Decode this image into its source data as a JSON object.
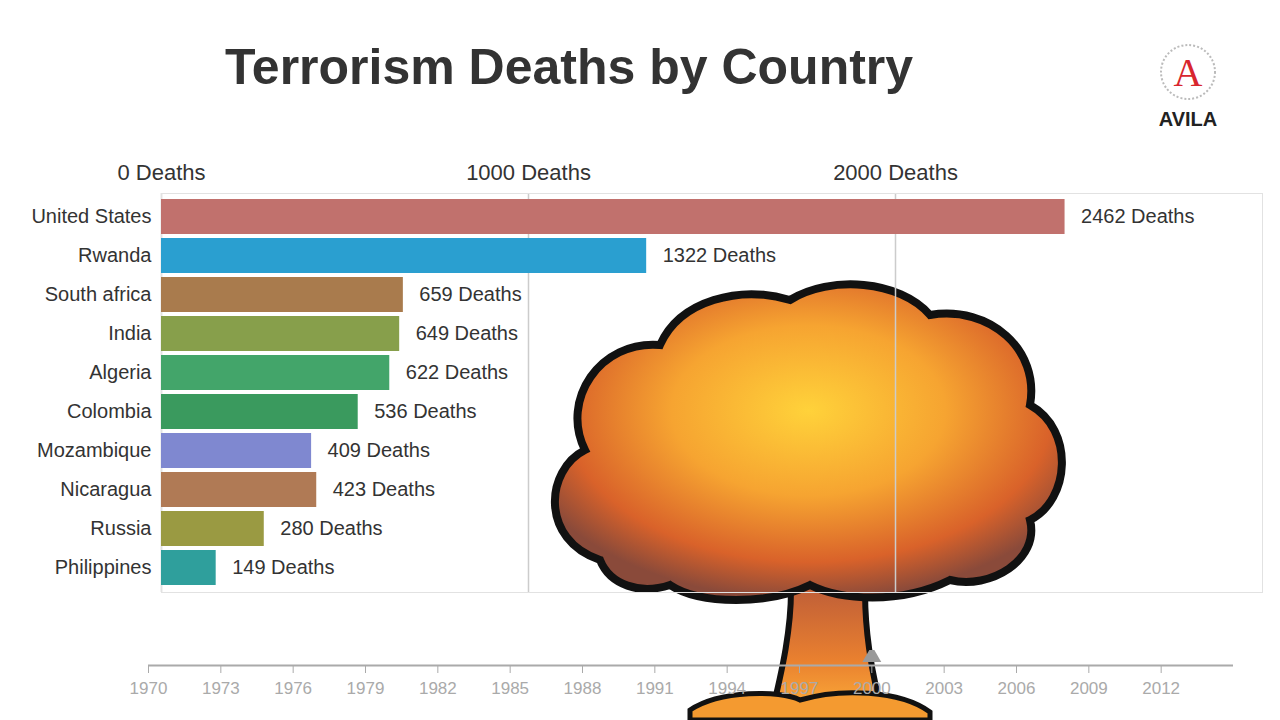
{
  "chart_data": [
    {
      "type": "bar",
      "orientation": "horizontal",
      "title": "Terrorism Deaths by Country",
      "categories": [
        "United States",
        "Rwanda",
        "South africa",
        "India",
        "Algeria",
        "Colombia",
        "Mozambique",
        "Nicaragua",
        "Russia",
        "Philippines"
      ],
      "values": [
        2462,
        1322,
        659,
        649,
        622,
        536,
        409,
        423,
        280,
        149
      ],
      "value_labels": [
        "2462 Deaths",
        "1322 Deaths",
        "659 Deaths",
        "649 Deaths",
        "622 Deaths",
        "536 Deaths",
        "409 Deaths",
        "423 Deaths",
        "280 Deaths",
        "149 Deaths"
      ],
      "colors": [
        "#c1716d",
        "#2a9fd0",
        "#a97b4d",
        "#879f4b",
        "#43a56a",
        "#3a9a5e",
        "#7f88d0",
        "#b07a55",
        "#9a9a42",
        "#2f9f9c"
      ],
      "xlim": [
        0,
        3000
      ],
      "xticks": [
        {
          "value": 0,
          "label": "0 Deaths"
        },
        {
          "value": 1000,
          "label": "1000 Deaths"
        },
        {
          "value": 2000,
          "label": "2000 Deaths"
        }
      ],
      "grid": true,
      "data_labels": true
    },
    {
      "type": "timeline",
      "xlim": [
        1970,
        2015
      ],
      "xticks": [
        1970,
        1973,
        1976,
        1979,
        1982,
        1985,
        1988,
        1991,
        1994,
        1997,
        2000,
        2003,
        2006,
        2009,
        2012
      ],
      "values": [
        2000
      ]
    }
  ],
  "logo": {
    "letter": "A",
    "text": "AVILA"
  }
}
